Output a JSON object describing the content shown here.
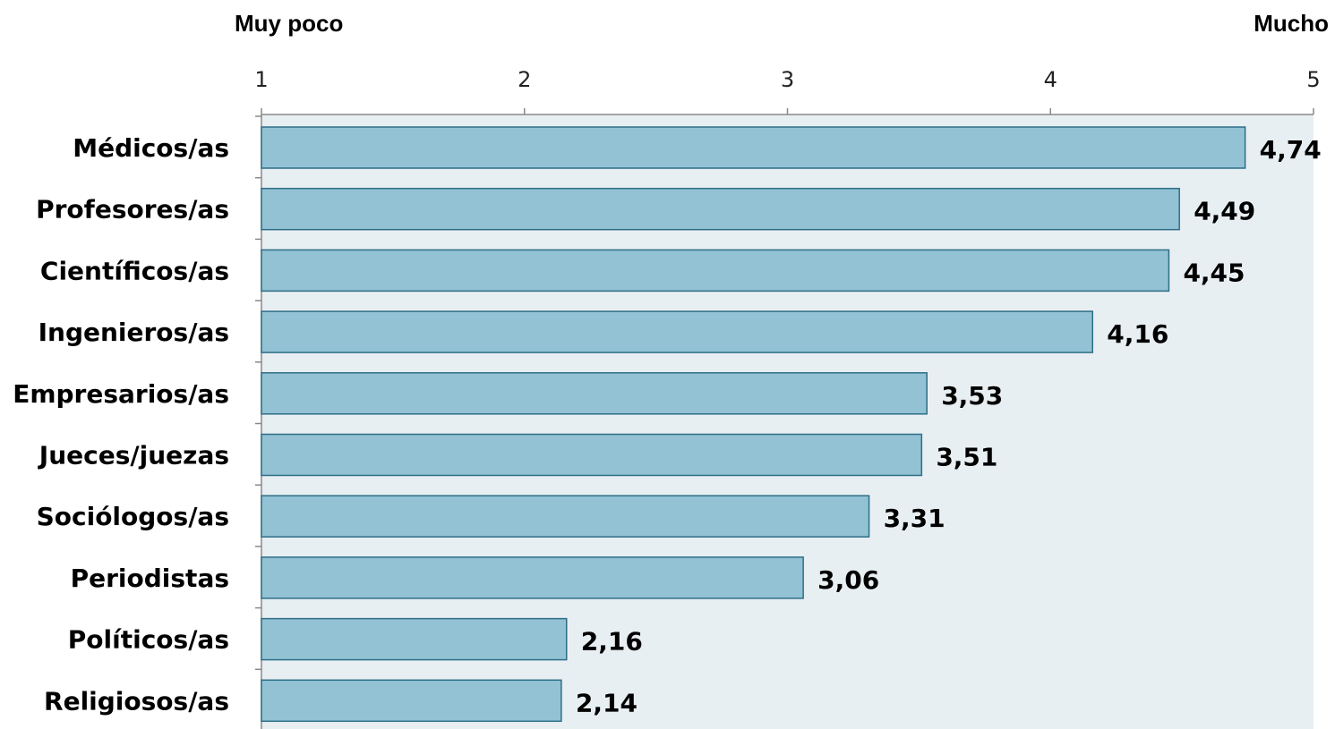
{
  "chart_data": {
    "type": "bar",
    "orientation": "horizontal",
    "title": "",
    "xlabel": "",
    "ylabel": "",
    "scale_anchor_left": "Muy poco",
    "scale_anchor_right": "Mucho",
    "xlim": [
      1,
      5
    ],
    "x_ticks": [
      "1",
      "2",
      "3",
      "4",
      "5"
    ],
    "grid": false,
    "legend": "none",
    "categories": [
      "Médicos/as",
      "Profesores/as",
      "Científicos/as",
      "Ingenieros/as",
      "Empresarios/as",
      "Jueces/juezas",
      "Sociólogos/as",
      "Periodistas",
      "Políticos/as",
      "Religiosos/as"
    ],
    "values": [
      4.74,
      4.49,
      4.45,
      4.16,
      3.53,
      3.51,
      3.31,
      3.06,
      2.16,
      2.14
    ],
    "value_labels": [
      "4,74",
      "4,49",
      "4,45",
      "4,16",
      "3,53",
      "3,51",
      "3,31",
      "3,06",
      "2,16",
      "2,14"
    ],
    "colors": {
      "bar_fill": "#92C2D4",
      "bar_stroke": "#2E6E86",
      "plot_background": "#E8EFF3",
      "axis": "#888888"
    }
  }
}
